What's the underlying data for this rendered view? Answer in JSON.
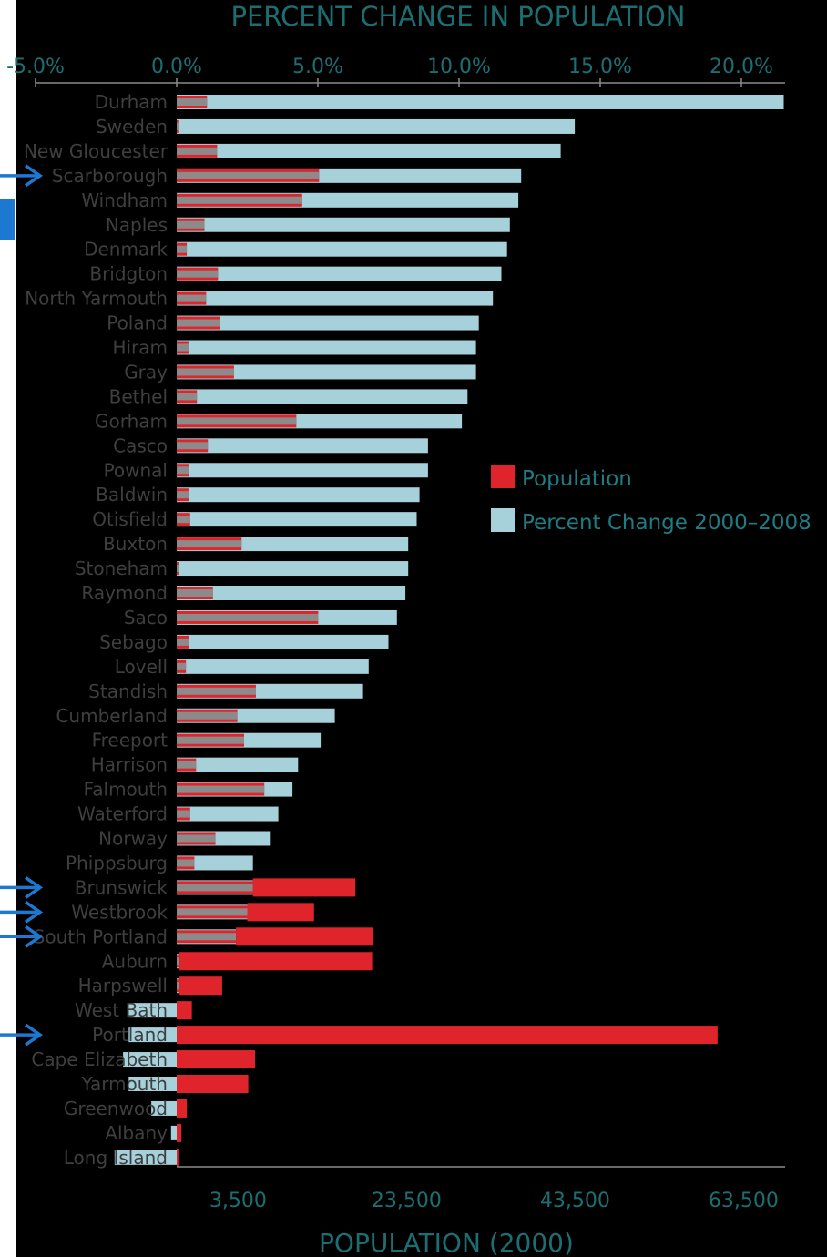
{
  "chart_data": {
    "type": "bar",
    "title": "PERCENT CHANGE IN POPULATION",
    "xlabel_bottom": "POPULATION (2000)",
    "top_axis": {
      "ticks": [
        "-5.0%",
        "0.0%",
        "5.0%",
        "10.0%",
        "15.0%",
        "20.0%"
      ],
      "tick_values": [
        -5,
        0,
        5,
        10,
        15,
        20
      ],
      "range": [
        -5,
        21.5
      ]
    },
    "bottom_axis": {
      "ticks": [
        "3,500",
        "23,500",
        "43,500",
        "63,500"
      ],
      "tick_values": [
        3500,
        23500,
        43500,
        63500
      ],
      "range": [
        0,
        64000
      ]
    },
    "legend": {
      "position": "right",
      "items": [
        {
          "name": "Population",
          "color": "#e0242c"
        },
        {
          "name": "Percent Change 2000–2008",
          "color": "#a6d0da"
        }
      ]
    },
    "colors": {
      "population": "#e0242c",
      "overlap": "#8b8b8b",
      "percent": "#a6d0da",
      "arrow": "#1c78d0"
    },
    "categories": [
      "Durham",
      "Sweden",
      "New Gloucester",
      "Scarborough",
      "Windham",
      "Naples",
      "Denmark",
      "Bridgton",
      "North Yarmouth",
      "Poland",
      "Hiram",
      "Gray",
      "Bethel",
      "Gorham",
      "Casco",
      "Pownal",
      "Baldwin",
      "Otisfield",
      "Buxton",
      "Stoneham",
      "Raymond",
      "Saco",
      "Sebago",
      "Lovell",
      "Standish",
      "Cumberland",
      "Freeport",
      "Harrison",
      "Falmouth",
      "Waterford",
      "Norway",
      "Phippsburg",
      "Brunswick",
      "Westbrook",
      "South Portland",
      "Auburn",
      "Harpswell",
      "West Bath",
      "Portland",
      "Cape Elizabeth",
      "Yarmouth",
      "Greenwood",
      "Albany",
      "Long Island"
    ],
    "series": [
      {
        "name": "Percent Change 2000–2008",
        "values": [
          21.5,
          14.1,
          13.6,
          12.2,
          12.1,
          11.8,
          11.7,
          11.5,
          11.2,
          10.7,
          10.6,
          10.6,
          10.3,
          10.1,
          8.9,
          8.9,
          8.6,
          8.5,
          8.2,
          8.2,
          8.1,
          7.8,
          7.5,
          6.8,
          6.6,
          5.6,
          5.1,
          4.3,
          4.1,
          3.6,
          3.3,
          2.7,
          2.7,
          2.5,
          2.1,
          0.1,
          0.1,
          -1.7,
          -1.7,
          -1.9,
          -1.7,
          -0.9,
          -0.2,
          -2.2
        ]
      },
      {
        "name": "Population",
        "values": [
          3600,
          190,
          4800,
          16900,
          14900,
          3300,
          1200,
          4900,
          3500,
          5100,
          1400,
          6800,
          2400,
          14200,
          3700,
          1500,
          1400,
          1600,
          7700,
          250,
          4300,
          16800,
          1500,
          1100,
          9400,
          7200,
          8000,
          2300,
          10400,
          1600,
          4600,
          2100,
          21200,
          16300,
          23300,
          23200,
          5400,
          1800,
          64200,
          9300,
          8500,
          1200,
          550,
          200
        ]
      }
    ]
  },
  "annotations": {
    "arrow_rows": [
      "Scarborough",
      "Brunswick",
      "Westbrook",
      "South Portland",
      "Portland"
    ]
  }
}
